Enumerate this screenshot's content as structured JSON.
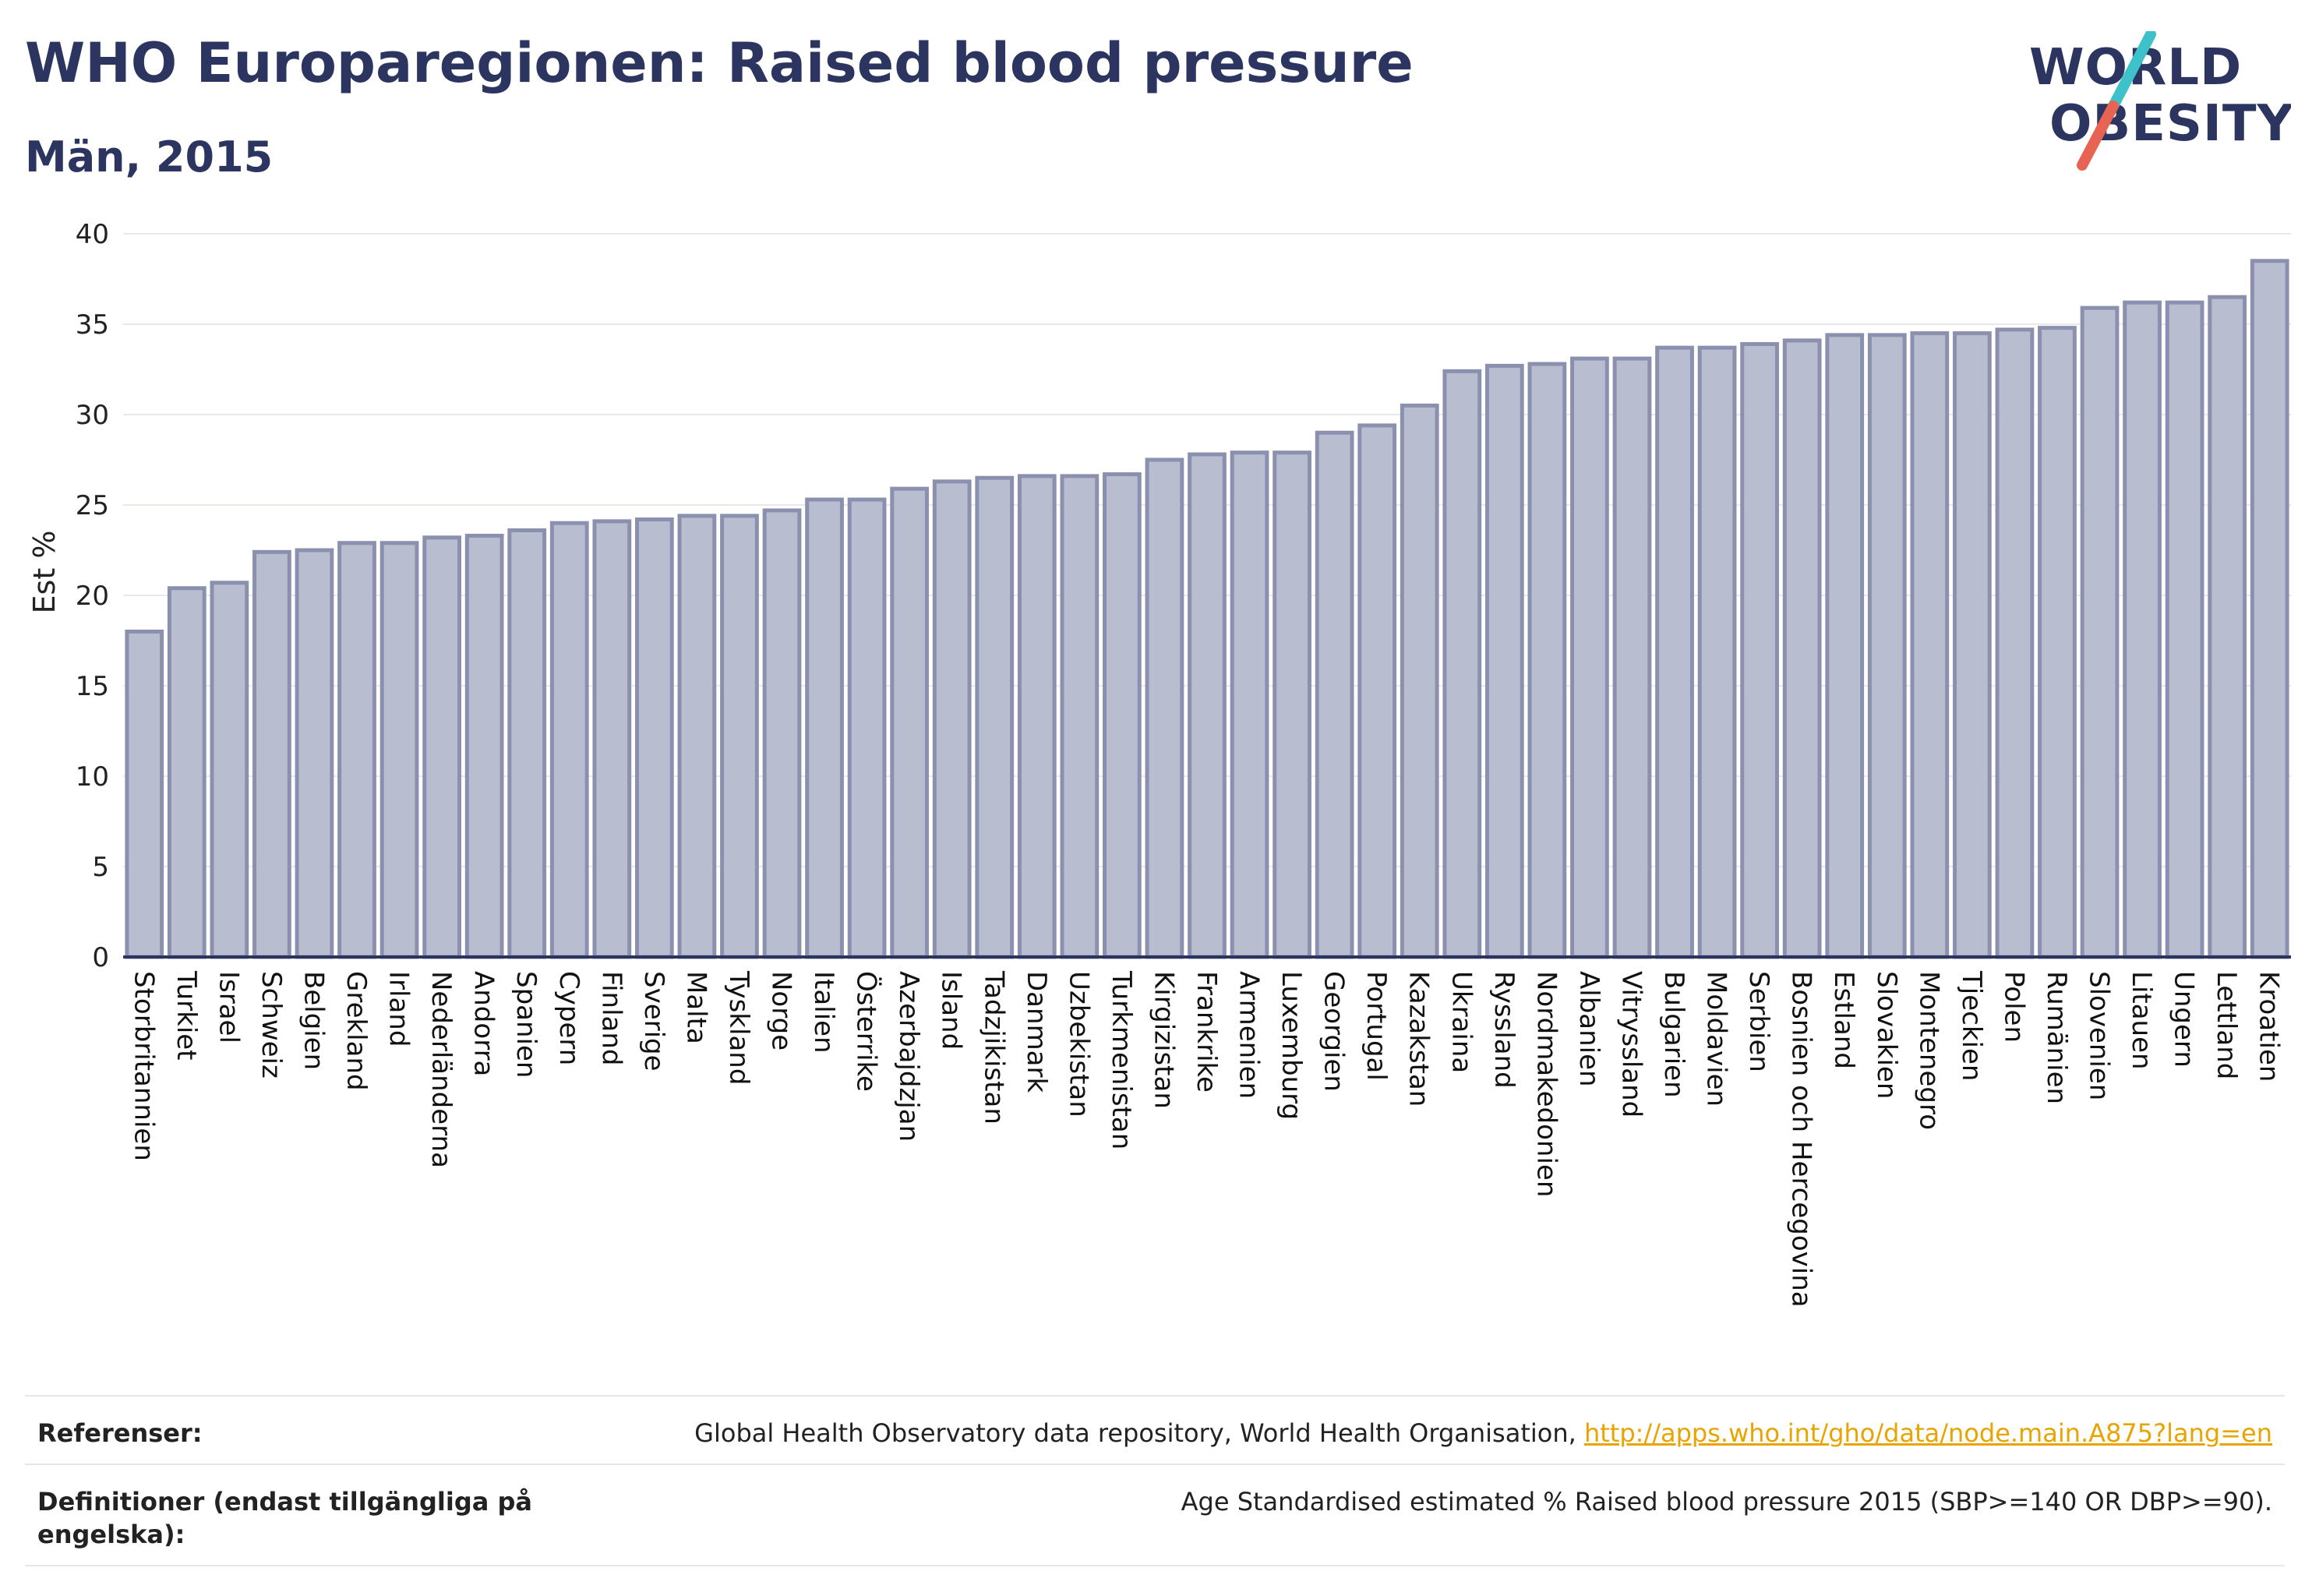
{
  "header": {
    "title": "WHO Europaregionen: Raised blood pressure",
    "subtitle": "Män, 2015"
  },
  "logo": {
    "line1": "WORLD",
    "line2": "OBESITY",
    "text_color": "#2b3560",
    "slash_colors": [
      "#3fc1c9",
      "#e86452"
    ]
  },
  "colors": {
    "bar_fill": "#b9bdd0",
    "bar_stroke": "#8a90ae",
    "axis": "#2b3560",
    "grid": "#e8e8ee"
  },
  "chart_data": {
    "type": "bar",
    "ylabel": "Est %",
    "xlabel": "",
    "ylim": [
      0,
      40
    ],
    "yticks": [
      0,
      5,
      10,
      15,
      20,
      25,
      30,
      35,
      40
    ],
    "grid": true,
    "categories": [
      "Storbritannien",
      "Turkiet",
      "Israel",
      "Schweiz",
      "Belgien",
      "Grekland",
      "Irland",
      "Nederländerna",
      "Andorra",
      "Spanien",
      "Cypern",
      "Finland",
      "Sverige",
      "Malta",
      "Tyskland",
      "Norge",
      "Italien",
      "Österrike",
      "Azerbajdzjan",
      "Island",
      "Tadzjikistan",
      "Danmark",
      "Uzbekistan",
      "Turkmenistan",
      "Kirgizistan",
      "Frankrike",
      "Armenien",
      "Luxemburg",
      "Georgien",
      "Portugal",
      "Kazakstan",
      "Ukraina",
      "Ryssland",
      "Nordmakedonien",
      "Albanien",
      "Vitryssland",
      "Bulgarien",
      "Moldavien",
      "Serbien",
      "Bosnien och Hercegovina",
      "Estland",
      "Slovakien",
      "Montenegro",
      "Tjeckien",
      "Polen",
      "Rumänien",
      "Slovenien",
      "Litauen",
      "Ungern",
      "Lettland",
      "Kroatien"
    ],
    "values": [
      18.0,
      20.4,
      20.7,
      22.4,
      22.5,
      22.9,
      22.9,
      23.2,
      23.3,
      23.6,
      24.0,
      24.1,
      24.2,
      24.4,
      24.4,
      24.7,
      25.3,
      25.3,
      25.9,
      26.3,
      26.5,
      26.6,
      26.6,
      26.7,
      27.5,
      27.8,
      27.9,
      27.9,
      29.0,
      29.4,
      30.5,
      32.4,
      32.7,
      32.8,
      33.1,
      33.1,
      33.7,
      33.7,
      33.9,
      34.1,
      34.4,
      34.4,
      34.5,
      34.5,
      34.7,
      34.8,
      35.9,
      36.2,
      36.2,
      36.5,
      38.5
    ]
  },
  "footer": {
    "references_label": "Referenser:",
    "references_text": "Global Health Observatory data repository, World Health Organisation, ",
    "references_link": "http://apps.who.int/gho/data/node.main.A875?lang=en",
    "definitions_label": "Definitioner (endast tillgängliga på engelska):",
    "definitions_text": "Age Standardised estimated % Raised blood pressure 2015 (SBP>=140 OR DBP>=90)."
  }
}
